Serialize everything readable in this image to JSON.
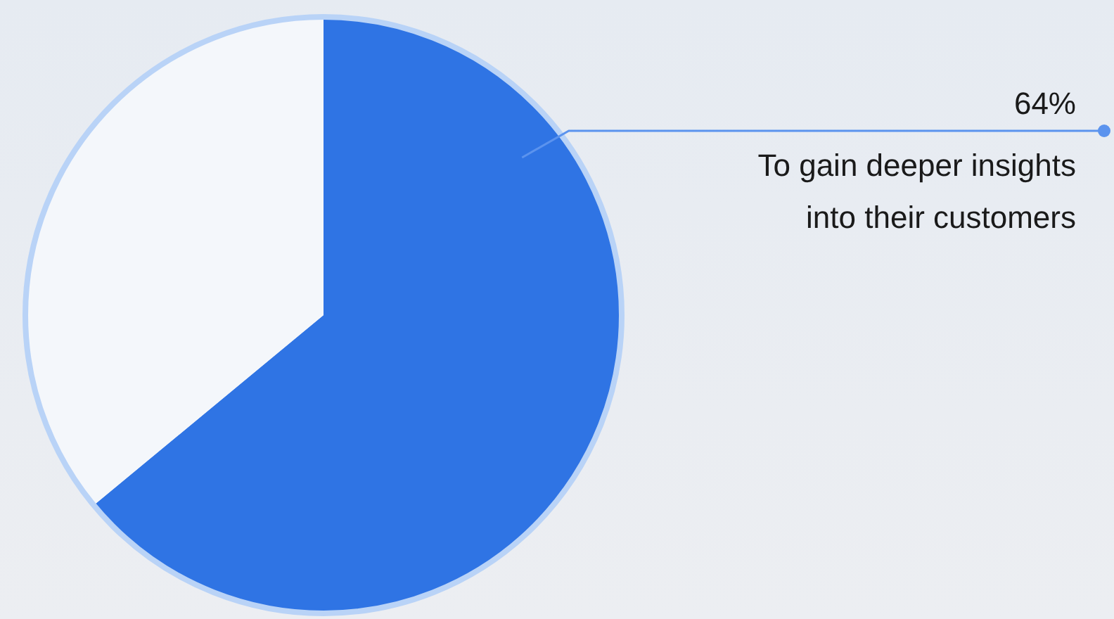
{
  "chart_data": {
    "type": "pie",
    "categories": [
      "To gain deeper insights into their customers",
      null
    ],
    "values": [
      64,
      36
    ],
    "colors": [
      "#2f74e4",
      "#f4f7fb"
    ],
    "value_labels": [
      "64%",
      null
    ]
  }
}
